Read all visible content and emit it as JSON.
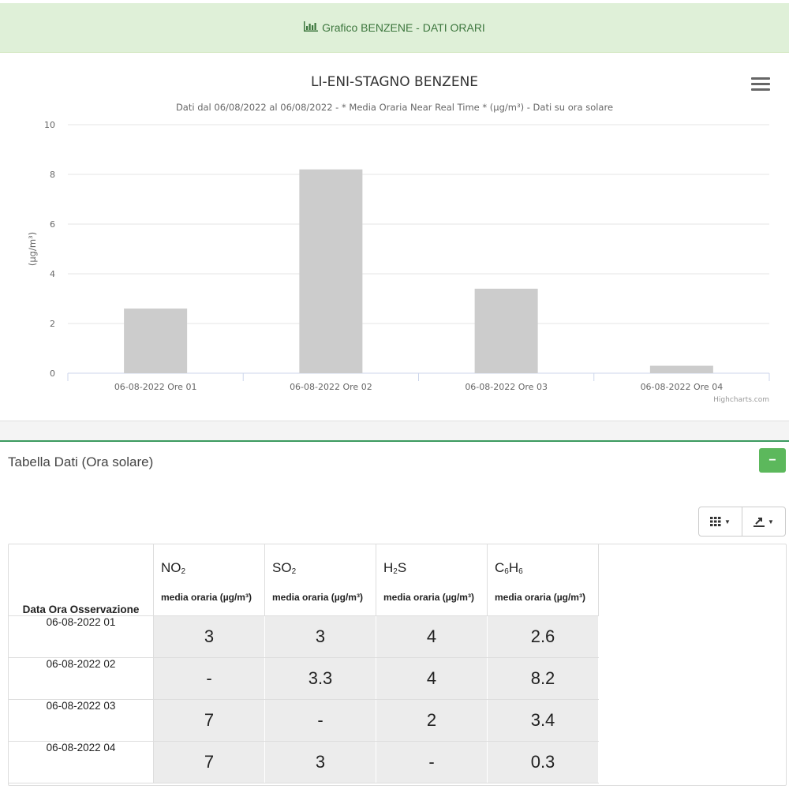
{
  "banner": {
    "icon": "bar-chart-icon",
    "text": "Grafico BENZENE - DATI ORARI"
  },
  "chart": {
    "menu_icon": "hamburger-menu-icon",
    "credits": "Highcharts.com"
  },
  "chart_data": {
    "type": "bar",
    "title": "LI-ENI-STAGNO BENZENE",
    "subtitle": "Dati dal 06/08/2022 al 06/08/2022 - * Media Oraria Near Real Time * (µg/m³) - Dati su ora solare",
    "xlabel": "",
    "ylabel": "(µg/m³)",
    "categories": [
      "06-08-2022 Ore 01",
      "06-08-2022 Ore 02",
      "06-08-2022 Ore 03",
      "06-08-2022 Ore 04"
    ],
    "values": [
      2.6,
      8.2,
      3.4,
      0.3
    ],
    "ylim": [
      0,
      10
    ],
    "yticks": [
      "0",
      "2",
      "4",
      "6",
      "8",
      "10"
    ],
    "bar_color": "#cccccc",
    "grid": true,
    "legend": "none"
  },
  "table_panel": {
    "title": "Tabella Dati (Ora solare)",
    "collapse_label": "−",
    "tools": {
      "columns_icon": "columns-icon",
      "export_icon": "export-icon"
    },
    "date_header": "Data Ora Osservazione",
    "pollutants": [
      {
        "name": "NO",
        "sub": "2",
        "unit": "media oraria (µg/m³)"
      },
      {
        "name": "SO",
        "sub": "2",
        "unit": "media oraria (µg/m³)"
      },
      {
        "name": "H",
        "sub": "2",
        "name2": "S",
        "unit": "media oraria (µg/m³)"
      },
      {
        "name": "C",
        "sub": "6",
        "name2": "H",
        "sub2": "6",
        "unit": "media oraria (µg/m³)"
      }
    ],
    "rows": [
      {
        "date": "06-08-2022 01",
        "values": [
          "3",
          "3",
          "4",
          "2.6"
        ]
      },
      {
        "date": "06-08-2022 02",
        "values": [
          "-",
          "3.3",
          "4",
          "8.2"
        ]
      },
      {
        "date": "06-08-2022 03",
        "values": [
          "7",
          "-",
          "2",
          "3.4"
        ]
      },
      {
        "date": "06-08-2022 04",
        "values": [
          "7",
          "3",
          "-",
          "0.3"
        ]
      }
    ]
  }
}
